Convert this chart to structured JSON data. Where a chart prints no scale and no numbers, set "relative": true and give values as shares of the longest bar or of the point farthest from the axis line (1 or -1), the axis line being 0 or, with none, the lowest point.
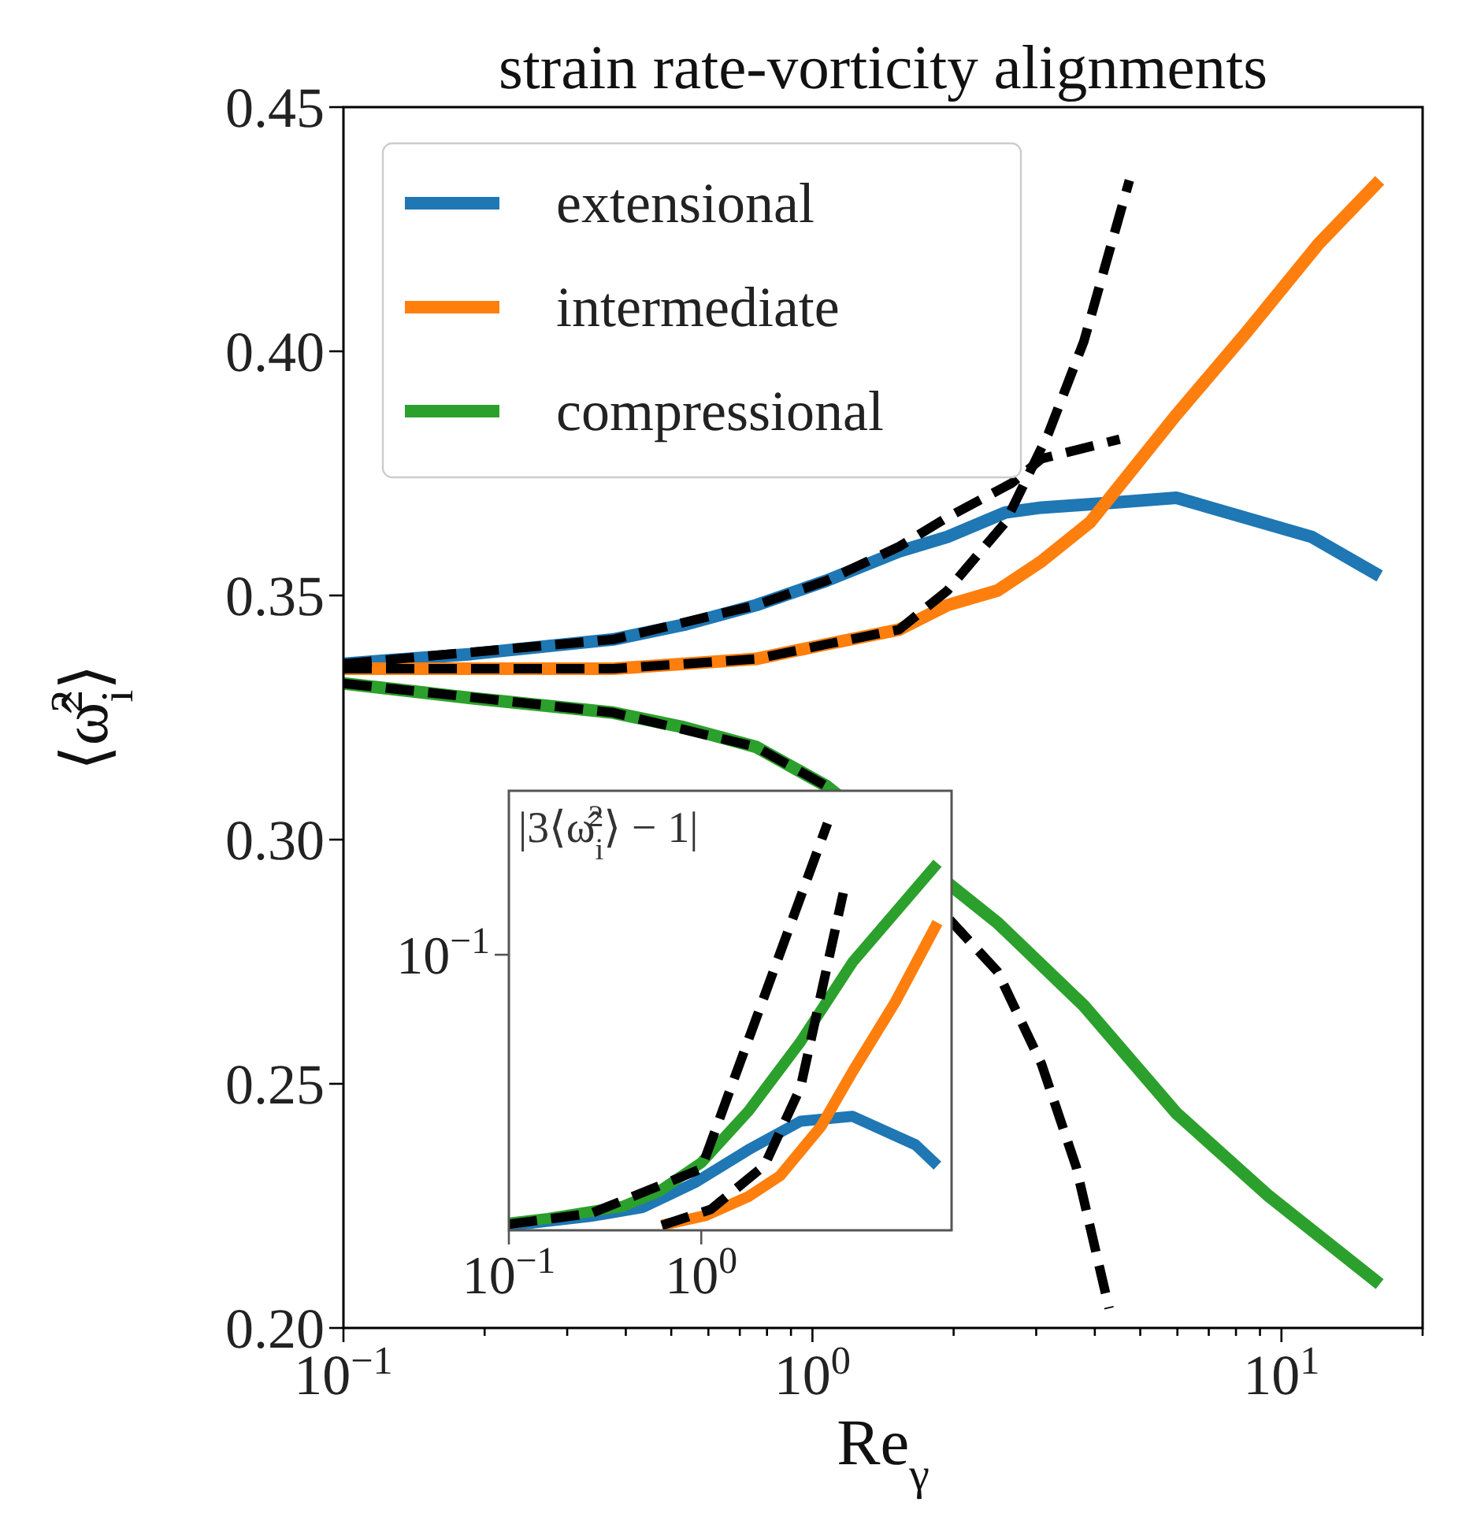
{
  "chart_data": [
    {
      "type": "line",
      "title": "strain rate-vorticity alignments",
      "xlabel": "Re$_{γ}$",
      "ylabel": "⟨ω̂$_{i}$$^{2}$⟩",
      "log": "x",
      "xlim": [
        0.1,
        20
      ],
      "ylim": [
        0.2,
        0.45
      ],
      "xticks": [
        {
          "value": 0.1,
          "label": "10$^{−1}$"
        },
        {
          "value": 0.2,
          "label": null
        },
        {
          "value": 0.3,
          "label": null
        },
        {
          "value": 0.4,
          "label": null
        },
        {
          "value": 0.5,
          "label": null
        },
        {
          "value": 0.6,
          "label": null
        },
        {
          "value": 0.7,
          "label": null
        },
        {
          "value": 0.8,
          "label": null
        },
        {
          "value": 0.9,
          "label": null
        },
        {
          "value": 1,
          "label": "10$^{0}$"
        },
        {
          "value": 2,
          "label": null
        },
        {
          "value": 3,
          "label": null
        },
        {
          "value": 4,
          "label": null
        },
        {
          "value": 5,
          "label": null
        },
        {
          "value": 6,
          "label": null
        },
        {
          "value": 7,
          "label": null
        },
        {
          "value": 8,
          "label": null
        },
        {
          "value": 9,
          "label": null
        },
        {
          "value": 10,
          "label": "10$^{1}$"
        },
        {
          "value": 20,
          "label": null
        }
      ],
      "yticks": [
        {
          "value": 0.2,
          "label": "0.20"
        },
        {
          "value": 0.25,
          "label": "0.25"
        },
        {
          "value": 0.3,
          "label": "0.30"
        },
        {
          "value": 0.35,
          "label": "0.35"
        },
        {
          "value": 0.4,
          "label": "0.40"
        },
        {
          "value": 0.45,
          "label": "0.45"
        }
      ],
      "legend": "top left",
      "grid": false,
      "series": [
        {
          "name": "extensional",
          "color": "#1f77b4",
          "line_style": "solid",
          "x": [
            0.1,
            0.187,
            0.376,
            0.532,
            0.758,
            1.07,
            1.53,
            1.94,
            2.58,
            3.08,
            4.35,
            5.97,
            11.6,
            16.2
          ],
          "values": [
            0.336,
            0.338,
            0.341,
            0.344,
            0.348,
            0.353,
            0.359,
            0.362,
            0.367,
            0.368,
            0.369,
            0.37,
            0.362,
            0.354
          ]
        },
        {
          "name": "intermediate",
          "color": "#ff7f0e",
          "line_style": "solid",
          "x": [
            0.1,
            0.376,
            0.758,
            1.07,
            1.53,
            1.94,
            2.48,
            3.08,
            3.91,
            5.97,
            8.44,
            12.0,
            16.2
          ],
          "values": [
            0.335,
            0.335,
            0.337,
            0.34,
            0.343,
            0.348,
            0.351,
            0.357,
            0.365,
            0.387,
            0.404,
            0.422,
            0.435
          ]
        },
        {
          "name": "compressional",
          "color": "#2ca02c",
          "line_style": "solid",
          "x": [
            0.1,
            0.187,
            0.376,
            0.532,
            0.758,
            1.07,
            2.48,
            3.79,
            5.97,
            9.4,
            16.2
          ],
          "values": [
            0.332,
            0.329,
            0.326,
            0.323,
            0.319,
            0.311,
            0.283,
            0.266,
            0.244,
            0.227,
            0.209
          ]
        },
        {
          "color": "#000000",
          "line_style": "dashed",
          "x": [
            0.1,
            0.376,
            0.758,
            1.07,
            1.53,
            1.94,
            2.66,
            3.08,
            4.52
          ],
          "values": [
            0.336,
            0.341,
            0.348,
            0.353,
            0.36,
            0.366,
            0.373,
            0.378,
            0.382
          ]
        },
        {
          "color": "#000000",
          "line_style": "dashed",
          "x": [
            0.1,
            0.376,
            0.758,
            1.07,
            1.53,
            1.94,
            2.58,
            3.18,
            3.79,
            4.74
          ],
          "values": [
            0.335,
            0.335,
            0.337,
            0.34,
            0.343,
            0.351,
            0.365,
            0.383,
            0.402,
            0.435
          ]
        },
        {
          "color": "#000000",
          "line_style": "dashed",
          "x": [
            0.1,
            0.376,
            0.758,
            1.07,
            2.48,
            3.08,
            3.65,
            4.29
          ],
          "values": [
            0.332,
            0.326,
            0.319,
            0.311,
            0.273,
            0.254,
            0.233,
            0.204
          ]
        }
      ]
    },
    {
      "type": "line",
      "ylabel": "|3⟨ω̂$_{i}$$^{2}$⟩ − 1|",
      "log": "x",
      "relative": true,
      "xlim": [
        0.1,
        20
      ],
      "xticks": [
        {
          "value": 0.1,
          "label": "10$^{−1}$"
        },
        {
          "value": 1,
          "label": "10$^{0}$"
        }
      ],
      "annotations": [
        "10$^{−1}$"
      ],
      "series": [
        {
          "color": "#1f77b4",
          "line_style": "solid",
          "x": [
            0.1,
            0.133,
            0.267,
            0.497,
            0.927,
            1.76,
            3.28,
            6.12,
            13.0,
            16.9
          ],
          "values": [
            0.0124,
            0.0176,
            0.0341,
            0.0561,
            0.117,
            0.198,
            0.268,
            0.28,
            0.21,
            0.159
          ]
        },
        {
          "color": "#ff7f0e",
          "line_style": "solid",
          "x": [
            0.624,
            1.06,
            1.76,
            2.57,
            4.2,
            6.12,
            10.2,
            16.9
          ],
          "values": [
            0.0122,
            0.0366,
            0.0829,
            0.134,
            0.256,
            0.39,
            0.561,
            0.756
          ]
        },
        {
          "color": "#2ca02c",
          "line_style": "solid",
          "x": [
            0.1,
            0.16,
            0.267,
            0.389,
            0.601,
            1.0,
            1.76,
            3.28,
            6.12,
            16.9
          ],
          "values": [
            0.0176,
            0.0293,
            0.0463,
            0.0585,
            0.0951,
            0.166,
            0.293,
            0.463,
            0.659,
            0.902
          ]
        },
        {
          "color": "#000000",
          "line_style": "dashed",
          "x": [
            0.1,
            0.267,
            1.0,
            4.53
          ],
          "values": [
            0.0149,
            0.0415,
            0.151,
            1
          ]
        },
        {
          "color": "#000000",
          "line_style": "dashed",
          "x": [
            0.624,
            1.12,
            2.13,
            3.28,
            5.47
          ],
          "values": [
            0.0122,
            0.0512,
            0.159,
            0.351,
            0.829
          ]
        }
      ]
    }
  ]
}
